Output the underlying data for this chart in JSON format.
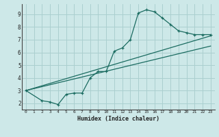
{
  "xlabel": "Humidex (Indice chaleur)",
  "bg_color": "#cde8e8",
  "grid_color": "#aacfcf",
  "line_color": "#1a6b60",
  "xlim": [
    -0.5,
    23.5
  ],
  "ylim": [
    1.5,
    9.8
  ],
  "xticks": [
    0,
    1,
    2,
    3,
    4,
    5,
    6,
    7,
    8,
    9,
    10,
    11,
    12,
    13,
    14,
    15,
    16,
    17,
    18,
    19,
    20,
    21,
    22,
    23
  ],
  "yticks": [
    2,
    3,
    4,
    5,
    6,
    7,
    8,
    9
  ],
  "curve1_x": [
    0,
    23
  ],
  "curve1_y": [
    3.0,
    7.3
  ],
  "curve2_x": [
    0,
    23
  ],
  "curve2_y": [
    3.0,
    6.5
  ],
  "curve3_x": [
    0,
    2,
    3,
    4,
    5,
    6,
    7,
    8,
    9,
    10,
    11,
    12,
    13,
    14,
    15,
    16,
    17,
    18,
    19,
    20,
    21,
    22,
    23
  ],
  "curve3_y": [
    3.0,
    2.2,
    2.1,
    1.9,
    2.7,
    2.8,
    2.8,
    4.0,
    4.5,
    4.5,
    6.1,
    6.35,
    7.0,
    9.1,
    9.35,
    9.2,
    8.7,
    8.2,
    7.7,
    7.55,
    7.4,
    7.4,
    7.4
  ]
}
